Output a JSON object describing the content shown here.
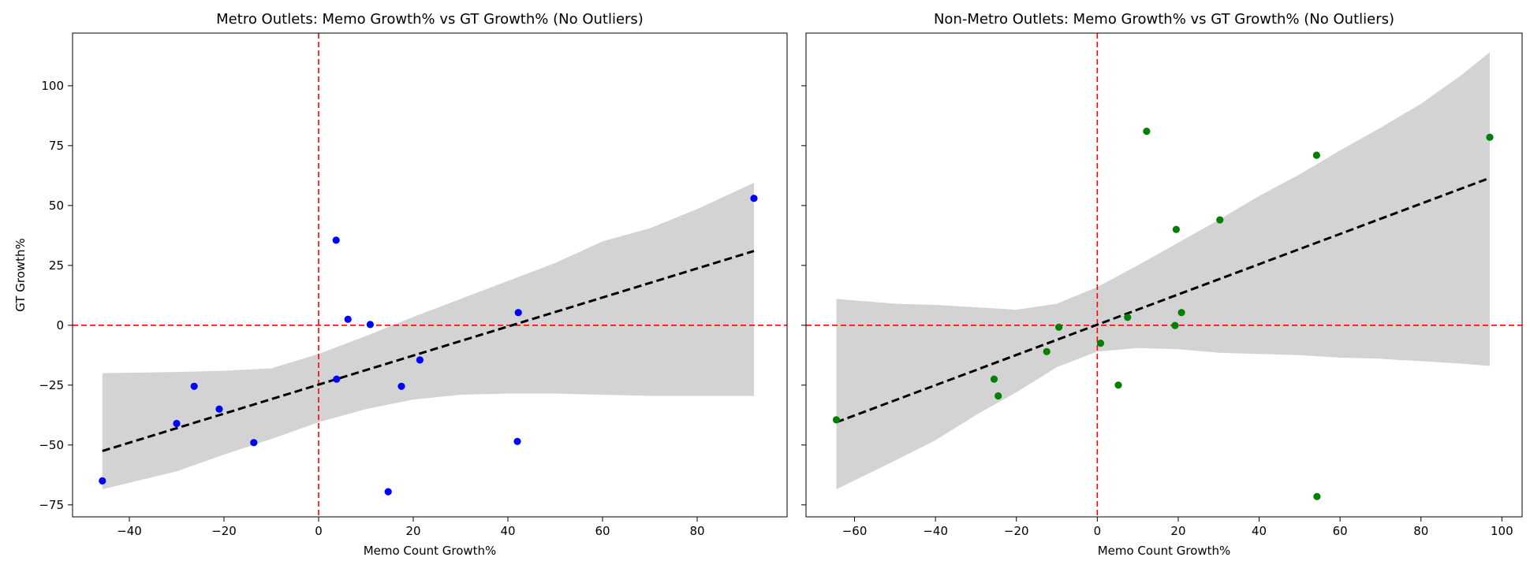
{
  "chart_data": [
    {
      "type": "scatter",
      "title": "Metro Outlets: Memo Growth% vs GT Growth% (No Outliers)",
      "xlabel": "Memo Count Growth%",
      "ylabel": "GT Growth%",
      "xlim": [
        -52,
        99
      ],
      "ylim": [
        -80,
        122
      ],
      "xticks": [
        -40,
        -20,
        0,
        20,
        40,
        60,
        80
      ],
      "yticks": [
        -75,
        -50,
        -25,
        0,
        25,
        50,
        75,
        100
      ],
      "point_color": "#0000ff",
      "points": [
        {
          "x": -45.7,
          "y": -65.0
        },
        {
          "x": -30.0,
          "y": -41.0
        },
        {
          "x": -26.3,
          "y": -25.5
        },
        {
          "x": -21.0,
          "y": -35.0
        },
        {
          "x": -13.7,
          "y": -49.0
        },
        {
          "x": 3.7,
          "y": 35.5
        },
        {
          "x": 3.8,
          "y": -22.5
        },
        {
          "x": 6.2,
          "y": 2.5
        },
        {
          "x": 10.9,
          "y": 0.3
        },
        {
          "x": 14.7,
          "y": -69.5
        },
        {
          "x": 17.5,
          "y": -25.5
        },
        {
          "x": 21.4,
          "y": -14.5
        },
        {
          "x": 42.0,
          "y": -48.5
        },
        {
          "x": 42.2,
          "y": 5.3
        },
        {
          "x": 92.0,
          "y": 53.0
        }
      ],
      "trend": {
        "x": [
          -45.7,
          92.0
        ],
        "y": [
          -52.5,
          31.0
        ],
        "color": "#000000",
        "style": "dashed"
      },
      "confidence_band": {
        "x": [
          -45.7,
          -30,
          -20,
          -10,
          0,
          10,
          20,
          30,
          40,
          50,
          60,
          70,
          80,
          92.0
        ],
        "upper": [
          -20.0,
          -19.5,
          -19.0,
          -18.0,
          -12.0,
          -4.5,
          3.5,
          11.0,
          18.5,
          26.0,
          35.0,
          40.5,
          48.5,
          59.5
        ],
        "lower": [
          -68.5,
          -61.0,
          -54.0,
          -47.5,
          -40.5,
          -35.0,
          -31.0,
          -29.0,
          -28.5,
          -28.5,
          -29.0,
          -29.5,
          -29.5,
          -29.5
        ],
        "color": "#d3d3d3"
      },
      "reference_lines": {
        "x": 0,
        "y": 0,
        "color": "#ff0000",
        "style": "dashed"
      }
    },
    {
      "type": "scatter",
      "title": "Non-Metro Outlets: Memo Growth% vs GT Growth% (No Outliers)",
      "xlabel": "Memo Count Growth%",
      "ylabel": "",
      "xlim": [
        -72,
        105
      ],
      "ylim": [
        -80,
        122
      ],
      "xticks": [
        -60,
        -40,
        -20,
        0,
        20,
        40,
        60,
        80,
        100
      ],
      "yticks": [
        -75,
        -50,
        -25,
        0,
        25,
        50,
        75,
        100
      ],
      "point_color": "#008000",
      "points": [
        {
          "x": -64.5,
          "y": -39.5
        },
        {
          "x": -25.5,
          "y": -22.5
        },
        {
          "x": -24.5,
          "y": -29.5
        },
        {
          "x": -12.5,
          "y": -11.0
        },
        {
          "x": -9.5,
          "y": -0.8
        },
        {
          "x": 0.8,
          "y": -7.5
        },
        {
          "x": 5.2,
          "y": -25.0
        },
        {
          "x": 7.5,
          "y": 3.3
        },
        {
          "x": 12.2,
          "y": 81.0
        },
        {
          "x": 19.2,
          "y": -0.1
        },
        {
          "x": 19.5,
          "y": 40.0
        },
        {
          "x": 20.8,
          "y": 5.3
        },
        {
          "x": 30.3,
          "y": 44.0
        },
        {
          "x": 54.2,
          "y": 71.0
        },
        {
          "x": 54.3,
          "y": -71.5
        },
        {
          "x": 97.0,
          "y": 78.5
        }
      ],
      "trend": {
        "x": [
          -64.5,
          97.0
        ],
        "y": [
          -40.5,
          61.5
        ],
        "color": "#000000",
        "style": "dashed"
      },
      "confidence_band": {
        "x": [
          -64.5,
          -50,
          -40,
          -30,
          -20,
          -10,
          0,
          10,
          20,
          30,
          40,
          50,
          60,
          70,
          80,
          90,
          97.0
        ],
        "upper": [
          11.0,
          9.0,
          8.5,
          7.5,
          6.5,
          9.0,
          16.0,
          25.0,
          34.5,
          44.0,
          54.0,
          63.0,
          73.0,
          82.5,
          92.5,
          104.5,
          114.0
        ],
        "lower": [
          -68.5,
          -56.5,
          -48.0,
          -37.5,
          -28.0,
          -17.5,
          -11.0,
          -9.5,
          -10.0,
          -11.5,
          -12.0,
          -12.5,
          -13.5,
          -14.0,
          -15.0,
          -16.0,
          -17.0
        ],
        "color": "#d3d3d3"
      },
      "reference_lines": {
        "x": 0,
        "y": 0,
        "color": "#ff0000",
        "style": "dashed"
      }
    }
  ]
}
